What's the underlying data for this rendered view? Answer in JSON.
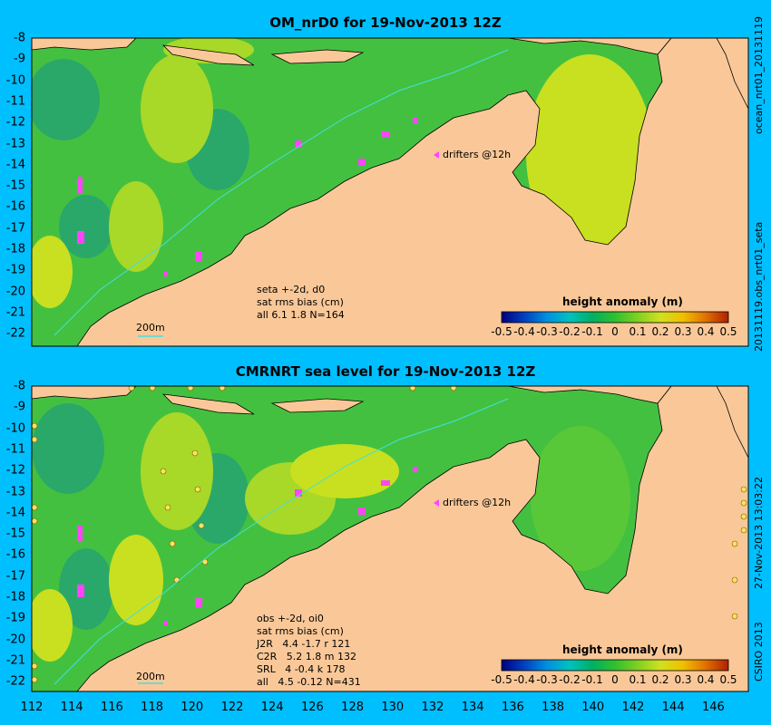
{
  "top": {
    "title": "OM_nrD0 for 19-Nov-2013 12Z",
    "lat_labels": [
      "-8",
      "-9",
      "-10",
      "-11",
      "-12",
      "-13",
      "-14",
      "-15",
      "-16",
      "-17",
      "-18",
      "-19",
      "-20",
      "-21",
      "-22"
    ],
    "drifters_label": "drifters @12h",
    "depth_label": "200m",
    "stats": [
      "seta +-2d, d0",
      "sat rms bias (cm)",
      "all 6.1 1.8 N=164"
    ],
    "right_label_1": "ocean_nrt01_20131119",
    "right_label_2": "20131119.obs_nrt01_seta"
  },
  "bottom": {
    "title": "CMRNRT sea level  for 19-Nov-2013 12Z",
    "lat_labels": [
      "-8",
      "-9",
      "-10",
      "-11",
      "-12",
      "-13",
      "-14",
      "-15",
      "-16",
      "-17",
      "-18",
      "-19",
      "-20",
      "-21",
      "-22"
    ],
    "lon_labels": [
      "112",
      "114",
      "116",
      "118",
      "120",
      "122",
      "124",
      "126",
      "128",
      "130",
      "132",
      "134",
      "136",
      "138",
      "140",
      "142",
      "144",
      "146"
    ],
    "drifters_label": "drifters @12h",
    "depth_label": "200m",
    "stats": [
      "obs +-2d, oi0",
      "sat rms bias (cm)",
      "J2R   4.4 -1.7 r 121",
      "C2R   5.2 1.8 m 132",
      "SRL   4 -0.4 k 178",
      "all   4.5 -0.12 N=431"
    ],
    "right_label_1": "27-Nov-2013 13:03:22",
    "right_label_2": "CSIRO 2013"
  },
  "legend": {
    "title": "height anomaly (m)",
    "ticks": [
      "-0.5",
      "-0.4",
      "-0.3",
      "-0.2",
      "-0.1",
      "0",
      "0.1",
      "0.2",
      "0.3",
      "0.4",
      "0.5"
    ],
    "colors": [
      "#000080",
      "#0040c0",
      "#0090e0",
      "#00c0c0",
      "#00b060",
      "#30c030",
      "#80d020",
      "#d0e020",
      "#f0c000",
      "#e07000",
      "#b02000"
    ]
  },
  "colors": {
    "background": "#00bfff",
    "land": "#fac898",
    "ocean_base": "#44c040",
    "drifter": "#ff44ff"
  }
}
